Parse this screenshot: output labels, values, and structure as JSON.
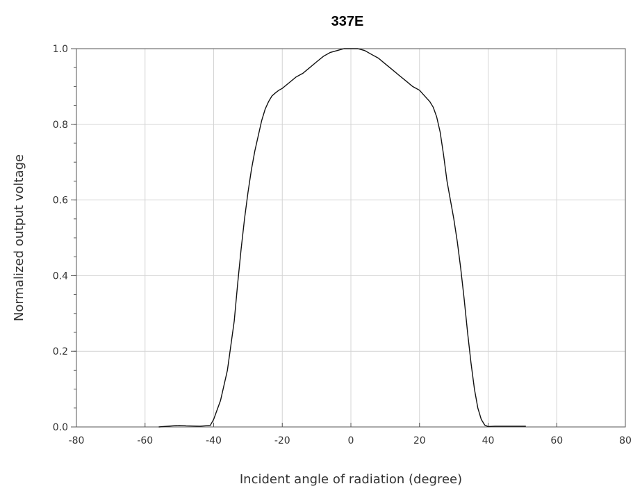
{
  "chart_data": {
    "type": "line",
    "title": "337E",
    "xlabel": "Incident angle of radiation (degree)",
    "ylabel": "Normalized output voltage",
    "xlim": [
      -80,
      80
    ],
    "ylim": [
      0.0,
      1.0
    ],
    "x_ticks": [
      -80,
      -60,
      -40,
      -20,
      0,
      20,
      40,
      60,
      80
    ],
    "x_tick_labels": [
      "-80",
      "-60",
      "-40",
      "-20",
      "0",
      "20",
      "40",
      "60",
      "80"
    ],
    "y_ticks": [
      0.0,
      0.2,
      0.4,
      0.6,
      0.8,
      1.0
    ],
    "y_tick_labels": [
      "0.0",
      "0.2",
      "0.4",
      "0.6",
      "0.8",
      "1.0"
    ],
    "grid": true,
    "series": [
      {
        "color": "#111111",
        "x": [
          -56,
          -52,
          -50,
          -48,
          -44,
          -41,
          -40,
          -38,
          -36,
          -34,
          -33,
          -32,
          -31,
          -30,
          -29,
          -28,
          -27,
          -26,
          -25,
          -24,
          -23,
          -22,
          -21,
          -20,
          -18,
          -16,
          -14,
          -12,
          -10,
          -8,
          -6,
          -4,
          -2,
          0,
          2,
          4,
          6,
          8,
          10,
          12,
          14,
          16,
          18,
          20,
          21,
          22,
          23,
          24,
          25,
          26,
          27,
          28,
          29,
          30,
          31,
          32,
          33,
          34,
          35,
          36,
          37,
          38,
          39,
          40,
          42,
          44,
          46,
          48,
          50,
          51
        ],
        "y": [
          0.0,
          0.003,
          0.004,
          0.003,
          0.002,
          0.004,
          0.02,
          0.07,
          0.15,
          0.28,
          0.38,
          0.47,
          0.55,
          0.62,
          0.68,
          0.73,
          0.77,
          0.81,
          0.84,
          0.86,
          0.875,
          0.883,
          0.89,
          0.895,
          0.91,
          0.925,
          0.935,
          0.95,
          0.965,
          0.98,
          0.99,
          0.995,
          1.0,
          1.0,
          1.0,
          0.995,
          0.985,
          0.975,
          0.96,
          0.945,
          0.93,
          0.915,
          0.9,
          0.89,
          0.88,
          0.87,
          0.86,
          0.845,
          0.82,
          0.78,
          0.72,
          0.65,
          0.6,
          0.55,
          0.49,
          0.42,
          0.34,
          0.25,
          0.17,
          0.1,
          0.05,
          0.02,
          0.005,
          0.001,
          0.002,
          0.002,
          0.002,
          0.002,
          0.002,
          0.002
        ]
      }
    ]
  }
}
